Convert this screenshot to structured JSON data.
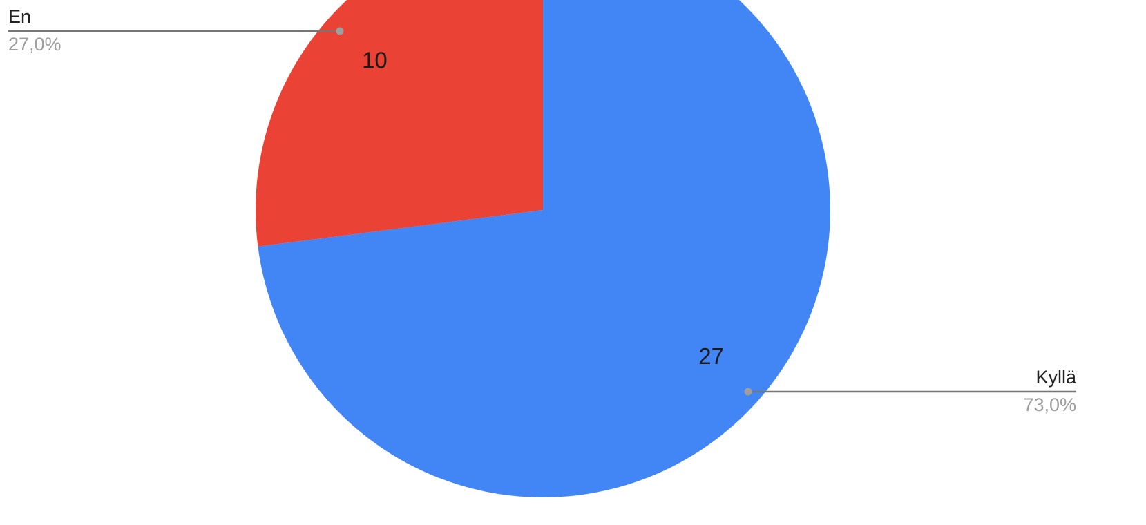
{
  "chart_data": {
    "type": "pie",
    "title": "",
    "slices": [
      {
        "label": "Kyllä",
        "value": 27,
        "percent_label": "73,0%",
        "color": "#4285f4"
      },
      {
        "label": "En",
        "value": 10,
        "percent_label": "27,0%",
        "color": "#ea4335"
      }
    ],
    "start_angle_deg": 0,
    "direction": "clockwise",
    "show_values_on_slices": true,
    "legend": "callouts"
  }
}
